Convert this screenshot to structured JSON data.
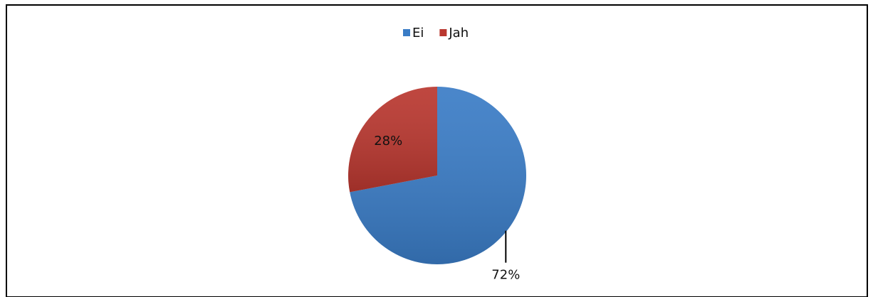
{
  "chart_data": {
    "type": "pie",
    "categories": [
      "Ei",
      "Jah"
    ],
    "values": [
      72,
      28
    ],
    "value_labels": [
      "72%",
      "28%"
    ],
    "colors": [
      "#3a7cc6",
      "#b9372f"
    ],
    "legend": "top"
  }
}
